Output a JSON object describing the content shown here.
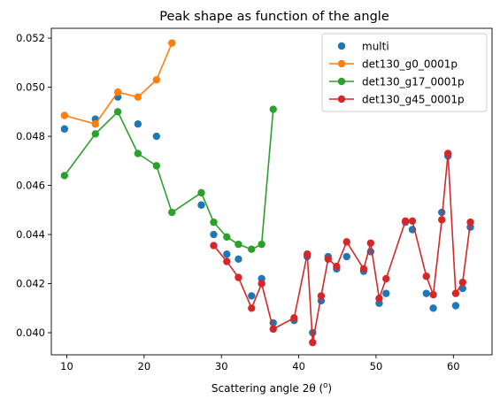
{
  "chart_data": {
    "type": "scatter",
    "title": "Peak shape as function of the angle",
    "xlabel": "Scattering angle 2θ (",
    "xlabel_sup": "o",
    "xlabel_close": ")",
    "ylabel": "",
    "xlim": [
      8,
      65
    ],
    "ylim": [
      0.0391,
      0.0524
    ],
    "xticks": [
      10,
      20,
      30,
      40,
      50,
      60
    ],
    "yticks": [
      0.04,
      0.042,
      0.044,
      0.046,
      0.048,
      0.05,
      0.052
    ],
    "ytick_labels": [
      "0.040",
      "0.042",
      "0.044",
      "0.046",
      "0.048",
      "0.050",
      "0.052"
    ],
    "grid": false,
    "legend_position": "top-right",
    "series": [
      {
        "name": "multi",
        "style": "markers",
        "color": "#1f77b4",
        "x": [
          9.7,
          13.7,
          16.6,
          19.2,
          21.6,
          27.4,
          29.0,
          30.7,
          32.2,
          33.9,
          35.2,
          36.7,
          39.4,
          41.1,
          41.8,
          42.9,
          43.8,
          44.9,
          46.2,
          48.4,
          49.3,
          50.4,
          51.3,
          53.8,
          54.7,
          56.5,
          57.4,
          58.5,
          59.3,
          60.3,
          61.2,
          62.2
        ],
        "y": [
          0.0483,
          0.0487,
          0.0496,
          0.0485,
          0.048,
          0.0452,
          0.044,
          0.0432,
          0.043,
          0.0415,
          0.0422,
          0.0404,
          0.0405,
          0.0431,
          0.04,
          0.0413,
          0.0431,
          0.0426,
          0.0431,
          0.0425,
          0.0433,
          0.0412,
          0.0416,
          0.0445,
          0.0442,
          0.0416,
          0.041,
          0.0449,
          0.0472,
          0.0411,
          0.0418,
          0.0443
        ]
      },
      {
        "name": "det130_g0_0001p",
        "style": "line-markers",
        "color": "#ff7f0e",
        "x": [
          9.7,
          13.7,
          16.6,
          19.2,
          21.6,
          23.6
        ],
        "y": [
          0.04885,
          0.0485,
          0.0498,
          0.0496,
          0.0503,
          0.0518
        ]
      },
      {
        "name": "det130_g17_0001p",
        "style": "line-markers",
        "color": "#2ca02c",
        "x": [
          9.7,
          13.7,
          16.6,
          19.2,
          21.6,
          23.6,
          27.4,
          29.0,
          30.7,
          32.2,
          33.9,
          35.2,
          36.7
        ],
        "y": [
          0.0464,
          0.0481,
          0.049,
          0.0473,
          0.0468,
          0.0449,
          0.0457,
          0.0445,
          0.0439,
          0.0436,
          0.0434,
          0.0436,
          0.0491
        ]
      },
      {
        "name": "det130_g45_0001p",
        "style": "line-markers",
        "color": "#d62728",
        "x": [
          29.0,
          30.7,
          32.2,
          33.9,
          35.2,
          36.7,
          39.4,
          41.1,
          41.8,
          42.9,
          43.8,
          44.9,
          46.2,
          48.4,
          49.3,
          50.4,
          51.3,
          53.8,
          54.7,
          56.5,
          57.4,
          58.5,
          59.3,
          60.3,
          61.2,
          62.2
        ],
        "y": [
          0.04355,
          0.0429,
          0.04225,
          0.041,
          0.042,
          0.04015,
          0.0406,
          0.0432,
          0.0396,
          0.0415,
          0.043,
          0.0427,
          0.0437,
          0.0426,
          0.04365,
          0.0414,
          0.0422,
          0.04455,
          0.04455,
          0.0423,
          0.04155,
          0.0446,
          0.0473,
          0.0416,
          0.04205,
          0.0445
        ]
      }
    ]
  }
}
